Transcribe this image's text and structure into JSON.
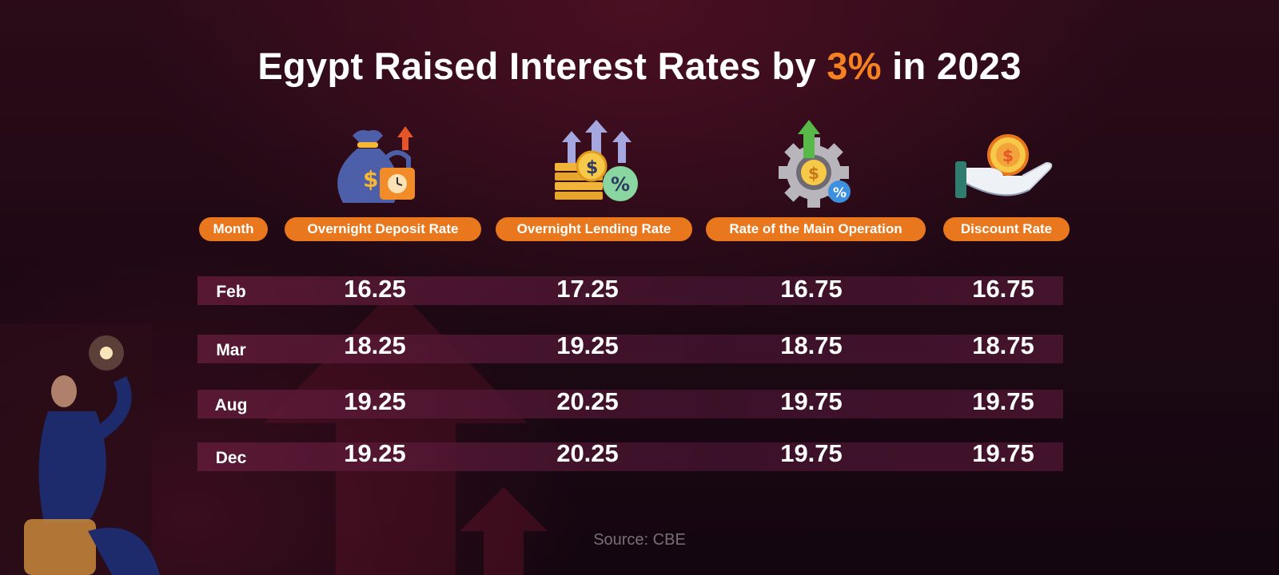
{
  "title": {
    "prefix": "Egypt Raised Interest Rates by ",
    "accent": "3%",
    "suffix": " in 2023",
    "accent_color": "#f58220"
  },
  "icons": [
    "money-bag-lock-icon",
    "coins-percent-arrows-icon",
    "gear-dollar-arrow-icon",
    "hand-coin-icon"
  ],
  "headers": {
    "month": "Month",
    "columns": [
      "Overnight Deposit Rate",
      "Overnight Lending Rate",
      "Rate of the Main Operation",
      "Discount Rate"
    ]
  },
  "rows": [
    {
      "month": "Feb",
      "values": [
        "16.25",
        "17.25",
        "16.75",
        "16.75"
      ]
    },
    {
      "month": "Mar",
      "values": [
        "18.25",
        "19.25",
        "18.75",
        "18.75"
      ]
    },
    {
      "month": "Aug",
      "values": [
        "19.25",
        "20.25",
        "19.75",
        "19.75"
      ]
    },
    {
      "month": "Dec",
      "values": [
        "19.25",
        "20.25",
        "19.75",
        "19.75"
      ]
    }
  ],
  "source": "Source: CBE",
  "colors": {
    "pill": "#e8771d",
    "background": "#1c0813"
  }
}
